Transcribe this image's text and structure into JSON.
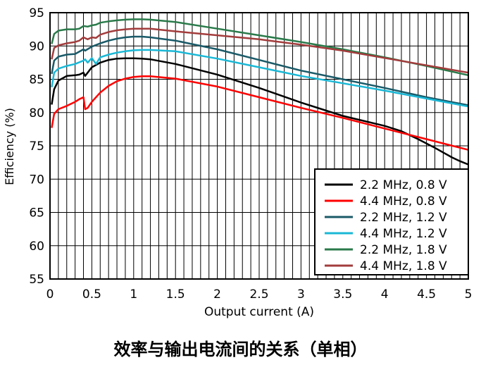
{
  "chart_data": {
    "type": "line",
    "title": "效率与输出电流间的关系（单相）",
    "xlabel": "Output current (A)",
    "ylabel": "Efficiency (%)",
    "xlim": [
      0,
      5
    ],
    "ylim": [
      55,
      95
    ],
    "xticks": [
      0,
      0.5,
      1,
      1.5,
      2,
      2.5,
      3,
      3.5,
      4,
      4.5,
      5
    ],
    "yticks": [
      55,
      60,
      65,
      70,
      75,
      80,
      85,
      90,
      95
    ],
    "xtick_labels": [
      "0",
      "0.5",
      "1",
      "1.5",
      "2",
      "2.5",
      "3",
      "3.5",
      "4",
      "4.5",
      "5"
    ],
    "ytick_labels": [
      "55",
      "60",
      "65",
      "70",
      "75",
      "80",
      "85",
      "90",
      "95"
    ],
    "grid": true,
    "legend_position": "bottom-right",
    "series": [
      {
        "name": "2.2 MHz, 0.8 V",
        "color": "#000000",
        "x": [
          0.02,
          0.05,
          0.1,
          0.2,
          0.3,
          0.35,
          0.4,
          0.42,
          0.45,
          0.5,
          0.6,
          0.7,
          0.8,
          0.9,
          1.0,
          1.1,
          1.2,
          1.5,
          2.0,
          2.5,
          3.0,
          3.5,
          4.0,
          4.2,
          4.4,
          4.6,
          4.8,
          4.9,
          5.0
        ],
        "y": [
          81.2,
          83.5,
          84.8,
          85.5,
          85.6,
          85.7,
          86.0,
          85.5,
          86.0,
          86.8,
          87.5,
          87.9,
          88.1,
          88.15,
          88.15,
          88.1,
          88.0,
          87.3,
          85.7,
          83.7,
          81.5,
          79.5,
          78.0,
          77.2,
          76.0,
          74.7,
          73.3,
          72.7,
          72.2
        ]
      },
      {
        "name": "4.4 MHz, 0.8 V",
        "color": "#ff0000",
        "x": [
          0.02,
          0.05,
          0.1,
          0.2,
          0.3,
          0.35,
          0.4,
          0.42,
          0.45,
          0.5,
          0.6,
          0.7,
          0.8,
          0.9,
          1.0,
          1.1,
          1.2,
          1.5,
          2.0,
          2.5,
          3.0,
          3.5,
          4.0,
          4.5,
          5.0
        ],
        "y": [
          77.7,
          79.8,
          80.5,
          81.0,
          81.6,
          82.0,
          82.3,
          80.5,
          80.7,
          81.6,
          83.0,
          84.0,
          84.7,
          85.1,
          85.35,
          85.45,
          85.45,
          85.1,
          83.9,
          82.3,
          80.7,
          79.2,
          77.6,
          76.0,
          74.4
        ]
      },
      {
        "name": "2.2 MHz, 1.2 V",
        "color": "#1a5a68",
        "x": [
          0.02,
          0.05,
          0.1,
          0.2,
          0.3,
          0.4,
          0.42,
          0.5,
          0.6,
          0.7,
          0.8,
          0.9,
          1.0,
          1.1,
          1.2,
          1.5,
          2.0,
          2.5,
          3.0,
          3.5,
          4.0,
          4.5,
          5.0
        ],
        "y": [
          85.8,
          87.8,
          88.4,
          88.7,
          88.8,
          89.5,
          89.3,
          89.9,
          90.4,
          90.8,
          91.1,
          91.3,
          91.4,
          91.4,
          91.3,
          90.8,
          89.5,
          87.9,
          86.3,
          85.0,
          83.7,
          82.3,
          81.1
        ]
      },
      {
        "name": "4.4 MHz, 1.2 V",
        "color": "#1ab8d6",
        "x": [
          0.02,
          0.05,
          0.1,
          0.2,
          0.3,
          0.4,
          0.42,
          0.45,
          0.5,
          0.55,
          0.6,
          0.7,
          0.8,
          0.9,
          1.0,
          1.1,
          1.2,
          1.5,
          2.0,
          2.5,
          3.0,
          3.5,
          4.0,
          4.5,
          5.0
        ],
        "y": [
          83.8,
          86.0,
          86.6,
          87.0,
          87.3,
          87.8,
          88.0,
          87.5,
          88.2,
          87.3,
          88.3,
          88.7,
          89.0,
          89.2,
          89.35,
          89.4,
          89.4,
          89.2,
          88.1,
          86.8,
          85.5,
          84.4,
          83.3,
          82.1,
          80.9
        ]
      },
      {
        "name": "2.2 MHz, 1.8 V",
        "color": "#2a7a4a",
        "x": [
          0.02,
          0.05,
          0.1,
          0.2,
          0.3,
          0.35,
          0.4,
          0.45,
          0.5,
          0.55,
          0.6,
          0.7,
          0.8,
          0.9,
          1.0,
          1.1,
          1.2,
          1.5,
          2.0,
          2.5,
          3.0,
          3.5,
          4.0,
          4.5,
          5.0
        ],
        "y": [
          90.3,
          91.8,
          92.3,
          92.5,
          92.5,
          92.6,
          93.0,
          92.9,
          93.1,
          93.2,
          93.5,
          93.7,
          93.85,
          93.95,
          94.0,
          94.0,
          93.95,
          93.6,
          92.6,
          91.6,
          90.6,
          89.5,
          88.3,
          87.0,
          85.6
        ]
      },
      {
        "name": "4.4 MHz, 1.8 V",
        "color": "#a33c3c",
        "x": [
          0.02,
          0.05,
          0.1,
          0.2,
          0.3,
          0.35,
          0.4,
          0.45,
          0.5,
          0.55,
          0.6,
          0.7,
          0.8,
          0.9,
          1.0,
          1.1,
          1.2,
          1.5,
          2.0,
          2.5,
          3.0,
          3.5,
          4.0,
          4.5,
          5.0
        ],
        "y": [
          88.0,
          89.7,
          90.1,
          90.4,
          90.6,
          90.8,
          91.3,
          91.0,
          91.3,
          91.2,
          91.7,
          92.1,
          92.35,
          92.5,
          92.6,
          92.6,
          92.6,
          92.2,
          91.6,
          91.0,
          90.2,
          89.3,
          88.2,
          87.1,
          86.0
        ]
      }
    ]
  }
}
